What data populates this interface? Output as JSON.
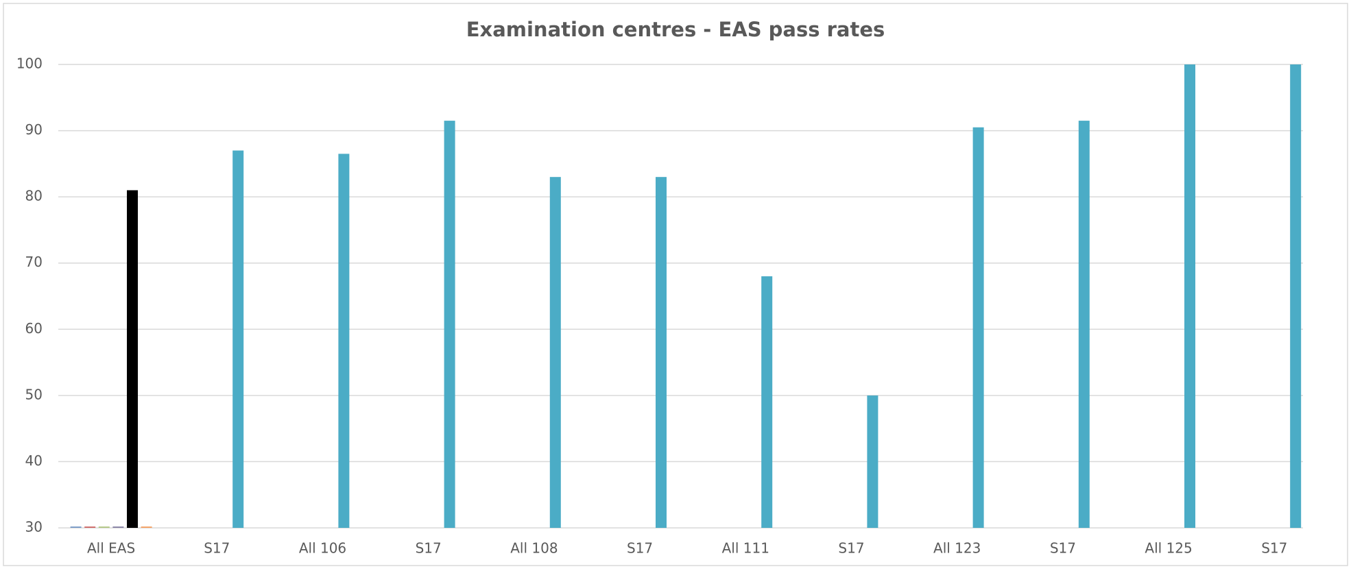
{
  "chart_data": {
    "type": "bar",
    "title": "Examination centres - EAS pass rates",
    "categories": [
      "All EAS",
      "S17",
      "All 106",
      "S17",
      "All 108",
      "S17",
      "All 111",
      "S17",
      "All 123",
      "S17",
      "All 125",
      "S17"
    ],
    "series": [
      {
        "color": "#7f9fc9",
        "values": [
          30,
          null,
          null,
          null,
          null,
          null,
          null,
          null,
          null,
          null,
          null,
          null
        ]
      },
      {
        "color": "#d0706e",
        "values": [
          30,
          null,
          null,
          null,
          null,
          null,
          null,
          null,
          null,
          null,
          null,
          null
        ]
      },
      {
        "color": "#b5c98a",
        "values": [
          30,
          null,
          null,
          null,
          null,
          null,
          null,
          null,
          null,
          null,
          null,
          null
        ]
      },
      {
        "color": "#8c87a8",
        "values": [
          30,
          null,
          null,
          null,
          null,
          null,
          null,
          null,
          null,
          null,
          null,
          null
        ]
      },
      {
        "color": "#4bacc6",
        "colors": [
          "#000000",
          "#4bacc6",
          "#4bacc6",
          "#4bacc6",
          "#4bacc6",
          "#4bacc6",
          "#4bacc6",
          "#4bacc6",
          "#4bacc6",
          "#4bacc6",
          "#4bacc6",
          "#4bacc6"
        ],
        "values": [
          81,
          87,
          86.5,
          91.5,
          83,
          83,
          68,
          50,
          90.5,
          91.5,
          100,
          100
        ]
      },
      {
        "color": "#f4a46a",
        "values": [
          30,
          null,
          null,
          null,
          null,
          null,
          null,
          null,
          null,
          null,
          null,
          null
        ]
      }
    ],
    "ylim": [
      30,
      100
    ],
    "yticks": [
      30,
      40,
      50,
      60,
      70,
      80,
      90,
      100
    ],
    "grid": true
  }
}
